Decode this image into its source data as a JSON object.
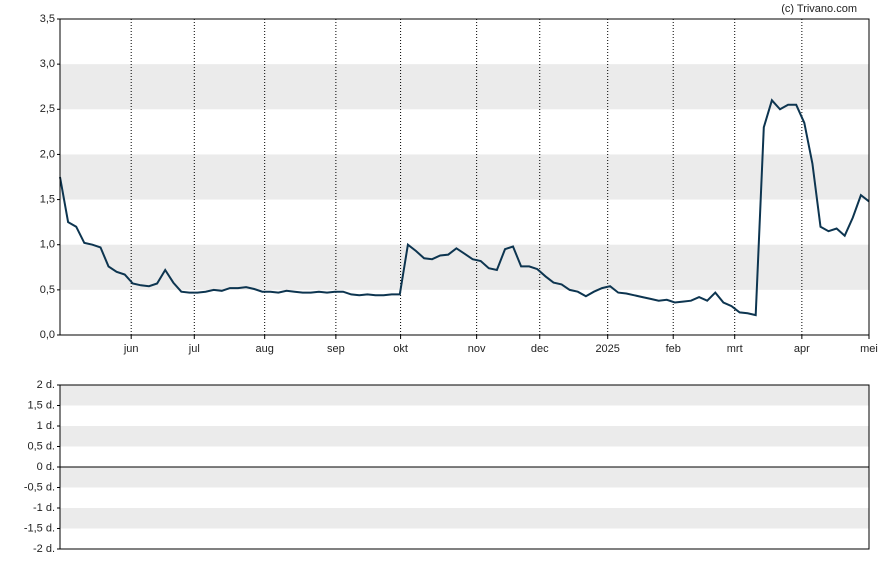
{
  "chart_data": [
    {
      "type": "line",
      "source": "(c) Trivano.com",
      "series": [
        {
          "color": "#0d3550",
          "values": [
            1.75,
            1.25,
            1.2,
            1.02,
            1.0,
            0.97,
            0.76,
            0.7,
            0.67,
            0.57,
            0.55,
            0.54,
            0.57,
            0.72,
            0.58,
            0.48,
            0.47,
            0.47,
            0.48,
            0.5,
            0.49,
            0.52,
            0.52,
            0.53,
            0.51,
            0.48,
            0.48,
            0.47,
            0.49,
            0.48,
            0.47,
            0.47,
            0.48,
            0.47,
            0.48,
            0.48,
            0.45,
            0.44,
            0.45,
            0.44,
            0.44,
            0.45,
            0.45,
            1.0,
            0.93,
            0.85,
            0.84,
            0.88,
            0.89,
            0.96,
            0.9,
            0.84,
            0.82,
            0.74,
            0.72,
            0.95,
            0.98,
            0.76,
            0.76,
            0.73,
            0.65,
            0.58,
            0.56,
            0.5,
            0.48,
            0.43,
            0.48,
            0.52,
            0.54,
            0.47,
            0.46,
            0.44,
            0.42,
            0.4,
            0.38,
            0.39,
            0.36,
            0.37,
            0.38,
            0.42,
            0.38,
            0.47,
            0.36,
            0.32,
            0.25,
            0.24,
            0.22,
            2.3,
            2.6,
            2.5,
            2.55,
            2.55,
            2.35,
            1.9,
            1.2,
            1.15,
            1.18,
            1.1,
            1.3,
            1.55,
            1.48
          ]
        }
      ],
      "xlim": [
        0,
        100
      ],
      "xticks": [
        {
          "value": 8.8,
          "label": "jun"
        },
        {
          "value": 16.6,
          "label": "jul"
        },
        {
          "value": 25.3,
          "label": "aug"
        },
        {
          "value": 34.1,
          "label": "sep"
        },
        {
          "value": 42.1,
          "label": "okt"
        },
        {
          "value": 51.5,
          "label": "nov"
        },
        {
          "value": 59.3,
          "label": "dec"
        },
        {
          "value": 67.7,
          "label": "2025"
        },
        {
          "value": 75.8,
          "label": "feb"
        },
        {
          "value": 83.4,
          "label": "mrt"
        },
        {
          "value": 91.7,
          "label": "apr"
        },
        {
          "value": 100,
          "label": "mei"
        }
      ],
      "ylim": [
        0,
        3.5
      ],
      "yticks": [
        {
          "value": 0,
          "label": "0,0"
        },
        {
          "value": 0.5,
          "label": "0,5"
        },
        {
          "value": 1,
          "label": "1,0"
        },
        {
          "value": 1.5,
          "label": "1,5"
        },
        {
          "value": 2,
          "label": "2,0"
        },
        {
          "value": 2.5,
          "label": "2,5"
        },
        {
          "value": 3,
          "label": "3,0"
        },
        {
          "value": 3.5,
          "label": "3,5"
        }
      ]
    },
    {
      "type": "line",
      "ylim": [
        -2,
        2
      ],
      "yticks": [
        {
          "value": 2,
          "label": "2 d."
        },
        {
          "value": 1.5,
          "label": "1,5 d."
        },
        {
          "value": 1,
          "label": "1 d."
        },
        {
          "value": 0.5,
          "label": "0,5 d."
        },
        {
          "value": 0,
          "label": "0 d."
        },
        {
          "value": -0.5,
          "label": "-0,5 d."
        },
        {
          "value": -1,
          "label": "-1 d."
        },
        {
          "value": -1.5,
          "label": "-1,5 d."
        },
        {
          "value": -2,
          "label": "-2 d."
        }
      ]
    }
  ]
}
